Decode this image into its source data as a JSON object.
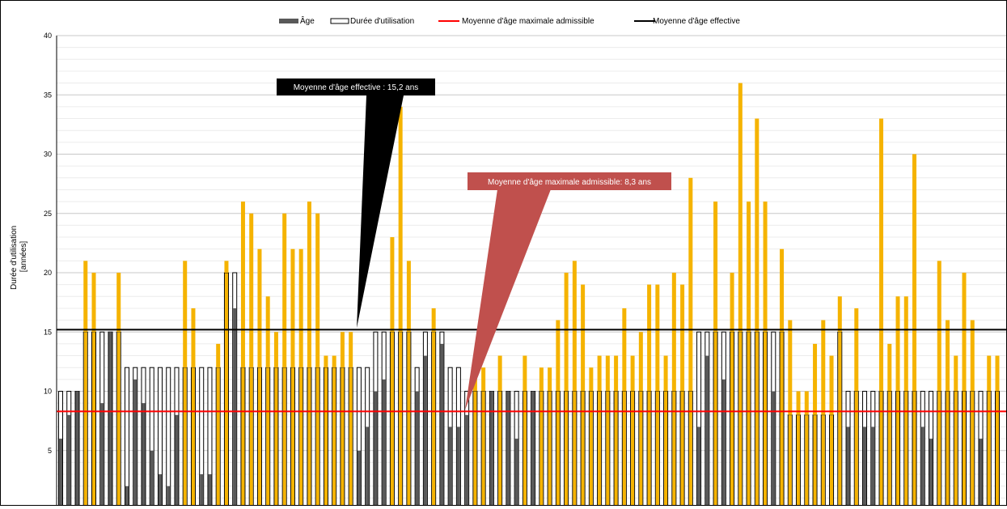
{
  "chart_data": {
    "type": "bar",
    "title": "",
    "xlabel": "",
    "ylabel": "Durée d'utilisation\n[années]",
    "ylim": [
      0,
      40
    ],
    "ytick_labels": [
      "5",
      "10",
      "15",
      "20",
      "25",
      "30",
      "35",
      "40"
    ],
    "legend_position": "top-center",
    "grid": true,
    "colors": {
      "age": "#595959",
      "usage_outline": "#000000",
      "usage_fill": "#ffffff",
      "excess": "#f5b300",
      "max_line": "#ff0000",
      "eff_line": "#000000",
      "eff_callout": "#000000",
      "max_callout": "#c0504d"
    },
    "legend": [
      {
        "key": "age",
        "label": "Âge"
      },
      {
        "key": "usage",
        "label": "Durée d'utilisation"
      },
      {
        "key": "max",
        "label": "Moyenne d'âge maximale admissible"
      },
      {
        "key": "eff",
        "label": "Moyenne d'âge effective"
      }
    ],
    "reference_lines": {
      "max_admissible": 8.3,
      "effective": 15.2
    },
    "annotations": {
      "effective": "Moyenne d'âge effective : 15,2 ans",
      "max_admissible": "Moyenne d'âge maximale admissible: 8,3 ans"
    },
    "series": [
      {
        "name": "Âge",
        "values": [
          6,
          8,
          10,
          21,
          20,
          9,
          15,
          20,
          2,
          11,
          9,
          5,
          3,
          2,
          8,
          21,
          17,
          3,
          3,
          14,
          21,
          17,
          26,
          25,
          22,
          18,
          15,
          25,
          22,
          22,
          26,
          25,
          13,
          13,
          15,
          15,
          5,
          7,
          10,
          11,
          23,
          34,
          21,
          10,
          13,
          17,
          14,
          7,
          7,
          8,
          12,
          12,
          10,
          13,
          10,
          6,
          13,
          10,
          12,
          12,
          16,
          20,
          21,
          19,
          12,
          13,
          13,
          13,
          17,
          13,
          15,
          19,
          19,
          13,
          20,
          19,
          28,
          7,
          13,
          26,
          11,
          20,
          36,
          26,
          33,
          26,
          10,
          22,
          16,
          10,
          10,
          14,
          16,
          13,
          18,
          7,
          17,
          7,
          7,
          33,
          14,
          18,
          18,
          30,
          7,
          6,
          21,
          16,
          13,
          20,
          16,
          6,
          13,
          13
        ]
      },
      {
        "name": "Durée d'utilisation",
        "values": [
          10,
          10,
          10,
          15,
          15,
          15,
          15,
          15,
          12,
          12,
          12,
          12,
          12,
          12,
          12,
          12,
          12,
          12,
          12,
          12,
          20,
          20,
          12,
          12,
          12,
          12,
          12,
          12,
          12,
          12,
          12,
          12,
          12,
          12,
          12,
          12,
          12,
          12,
          15,
          15,
          15,
          15,
          15,
          12,
          15,
          15,
          15,
          12,
          12,
          10,
          10,
          10,
          10,
          10,
          10,
          10,
          10,
          10,
          10,
          10,
          10,
          10,
          10,
          10,
          10,
          10,
          10,
          10,
          10,
          10,
          10,
          10,
          10,
          10,
          10,
          10,
          10,
          15,
          15,
          15,
          15,
          15,
          15,
          15,
          15,
          15,
          15,
          15,
          8,
          8,
          8,
          8,
          8,
          8,
          15,
          10,
          10,
          10,
          10,
          10,
          10,
          10,
          10,
          10,
          10,
          10,
          10,
          10,
          10,
          10,
          10,
          10,
          10,
          10
        ]
      }
    ]
  }
}
